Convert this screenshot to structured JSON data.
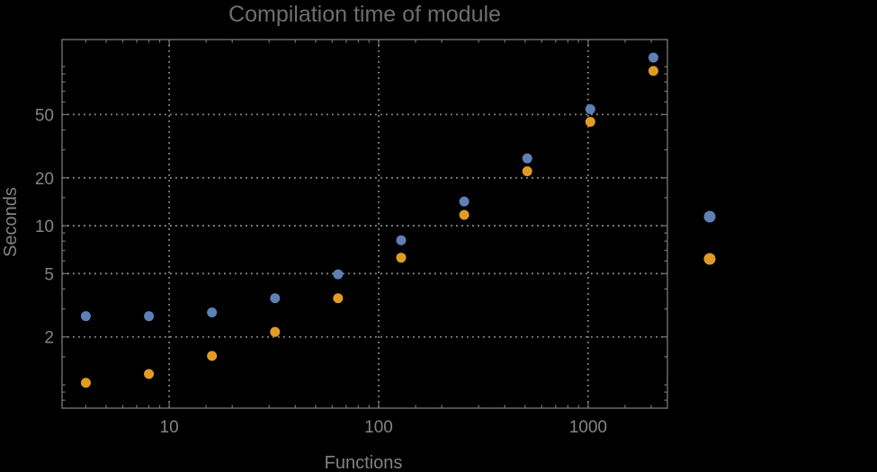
{
  "page": {
    "background": "#000000"
  },
  "chart_data": {
    "type": "scatter",
    "title": "Compilation time of module",
    "xlabel": "Functions",
    "ylabel": "Seconds",
    "x_scale": "log",
    "y_scale": "log",
    "x_domain": [
      3.08,
      2390
    ],
    "y_domain": [
      0.713,
      148
    ],
    "x_ticks": [
      10,
      100,
      1000
    ],
    "y_ticks": [
      2,
      5,
      10,
      20,
      50
    ],
    "grid": true,
    "x": [
      4,
      8,
      16,
      32,
      64,
      128,
      256,
      512,
      1024,
      2048
    ],
    "series": [
      {
        "name": "series-1-blue",
        "color": "#5E81B5",
        "values": [
          2.7,
          2.7,
          2.85,
          3.5,
          4.95,
          8.1,
          14.2,
          26.5,
          54,
          114
        ]
      },
      {
        "name": "series-2-orange",
        "color": "#E19C24",
        "values": [
          1.03,
          1.17,
          1.52,
          2.15,
          3.5,
          6.3,
          11.7,
          22,
          45,
          94
        ]
      }
    ],
    "legend": {
      "position": "right-outside",
      "markers": [
        {
          "name": "legend-marker-series-1",
          "color": "#5E81B5"
        },
        {
          "name": "legend-marker-series-2",
          "color": "#E19C24"
        }
      ]
    },
    "colors": {
      "frame": "#6f6f6f",
      "tick": "#6f6f6f",
      "grid": "#8b8b8b",
      "tick_label": "#848484",
      "title": "#6e6e6e",
      "axis_label": "#828282"
    }
  }
}
